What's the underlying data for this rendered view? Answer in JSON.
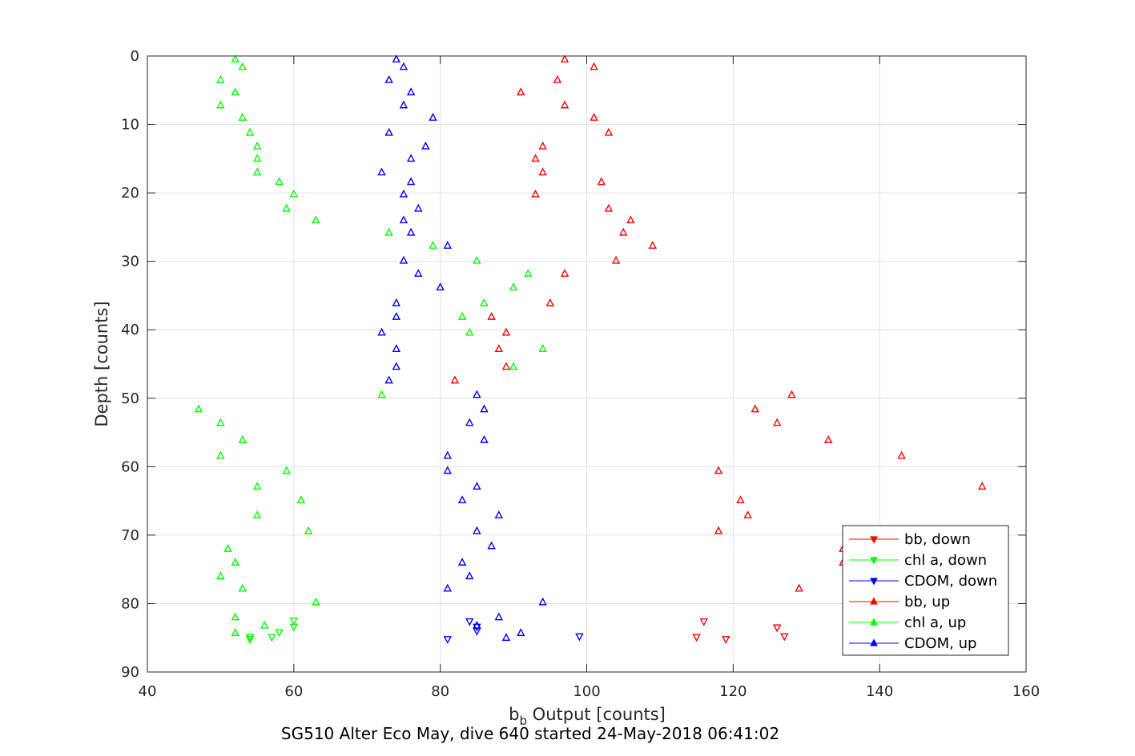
{
  "chart_data": {
    "type": "scatter",
    "title": "SG510 Alter Eco May, dive 640 started 24-May-2018 06:41:02",
    "xlabel": {
      "main": "b",
      "sub": "b",
      "rest": " Output [counts]"
    },
    "ylabel": "Depth [counts]",
    "xlim": [
      40,
      160
    ],
    "ylim": [
      0,
      90
    ],
    "y_reversed": true,
    "xticks": [
      "40",
      "60",
      "80",
      "100",
      "120",
      "140",
      "160"
    ],
    "yticks": [
      "0",
      "10",
      "20",
      "30",
      "40",
      "50",
      "60",
      "70",
      "80",
      "90"
    ],
    "grid": true,
    "legend_position": "bottom-right",
    "series": [
      {
        "name": "bb, down",
        "color": "#ff0000",
        "marker": "triangle-down",
        "points": [
          [
            116,
            82.6
          ],
          [
            126,
            83.5
          ],
          [
            127,
            84.8
          ],
          [
            115,
            84.9
          ],
          [
            119,
            85.2
          ]
        ]
      },
      {
        "name": "chl a, down",
        "color": "#00ff00",
        "marker": "triangle-down",
        "points": [
          [
            60,
            82.5
          ],
          [
            60,
            83.4
          ],
          [
            58,
            84.2
          ],
          [
            57,
            84.9
          ],
          [
            54,
            84.9
          ],
          [
            54,
            85.2
          ]
        ]
      },
      {
        "name": "CDOM, down",
        "color": "#0000ff",
        "marker": "triangle-down",
        "points": [
          [
            84,
            82.6
          ],
          [
            85,
            83.4
          ],
          [
            85,
            84.0
          ],
          [
            99,
            84.8
          ],
          [
            81,
            85.2
          ]
        ]
      },
      {
        "name": "bb, up",
        "color": "#ff0000",
        "marker": "triangle-up",
        "points": [
          [
            97,
            0.5
          ],
          [
            101,
            1.6
          ],
          [
            96,
            3.5
          ],
          [
            91,
            5.3
          ],
          [
            97,
            7.2
          ],
          [
            101,
            9.0
          ],
          [
            103,
            11.2
          ],
          [
            94,
            13.2
          ],
          [
            93,
            15.0
          ],
          [
            94,
            17.0
          ],
          [
            102,
            18.4
          ],
          [
            93,
            20.2
          ],
          [
            103,
            22.3
          ],
          [
            106,
            24.0
          ],
          [
            105,
            25.8
          ],
          [
            109,
            27.7
          ],
          [
            104,
            29.9
          ],
          [
            97,
            31.8
          ],
          [
            95,
            36.1
          ],
          [
            87,
            38.1
          ],
          [
            89,
            40.4
          ],
          [
            88,
            42.8
          ],
          [
            89,
            45.4
          ],
          [
            82,
            47.4
          ],
          [
            128,
            49.5
          ],
          [
            123,
            51.6
          ],
          [
            126,
            53.6
          ],
          [
            133,
            56.1
          ],
          [
            143,
            58.4
          ],
          [
            118,
            60.6
          ],
          [
            154,
            62.9
          ],
          [
            121,
            64.9
          ],
          [
            122,
            67.1
          ],
          [
            118,
            69.4
          ],
          [
            135,
            72.0
          ],
          [
            135,
            74.0
          ],
          [
            129,
            77.8
          ]
        ]
      },
      {
        "name": "chl a, up",
        "color": "#00ff00",
        "marker": "triangle-up",
        "points": [
          [
            52,
            0.5
          ],
          [
            53,
            1.6
          ],
          [
            50,
            3.5
          ],
          [
            52,
            5.3
          ],
          [
            50,
            7.2
          ],
          [
            53,
            9.0
          ],
          [
            54,
            11.2
          ],
          [
            55,
            13.2
          ],
          [
            55,
            15.0
          ],
          [
            55,
            17.0
          ],
          [
            58,
            18.4
          ],
          [
            60,
            20.2
          ],
          [
            59,
            22.3
          ],
          [
            63,
            24.0
          ],
          [
            73,
            25.8
          ],
          [
            79,
            27.7
          ],
          [
            85,
            29.9
          ],
          [
            92,
            31.8
          ],
          [
            90,
            33.8
          ],
          [
            86,
            36.1
          ],
          [
            83,
            38.1
          ],
          [
            84,
            40.4
          ],
          [
            94,
            42.8
          ],
          [
            90,
            45.4
          ],
          [
            72,
            49.5
          ],
          [
            47,
            51.6
          ],
          [
            50,
            53.6
          ],
          [
            53,
            56.1
          ],
          [
            50,
            58.4
          ],
          [
            59,
            60.6
          ],
          [
            55,
            62.9
          ],
          [
            61,
            64.9
          ],
          [
            55,
            67.1
          ],
          [
            62,
            69.4
          ],
          [
            51,
            72.0
          ],
          [
            52,
            74.0
          ],
          [
            50,
            76.0
          ],
          [
            53,
            77.8
          ],
          [
            63,
            79.8
          ],
          [
            52,
            82.0
          ],
          [
            56,
            83.2
          ],
          [
            52,
            84.3
          ]
        ]
      },
      {
        "name": "CDOM, up",
        "color": "#0000ff",
        "marker": "triangle-up",
        "points": [
          [
            74,
            0.5
          ],
          [
            75,
            1.6
          ],
          [
            73,
            3.5
          ],
          [
            76,
            5.3
          ],
          [
            75,
            7.2
          ],
          [
            79,
            9.0
          ],
          [
            73,
            11.2
          ],
          [
            78,
            13.2
          ],
          [
            76,
            15.0
          ],
          [
            72,
            17.0
          ],
          [
            76,
            18.4
          ],
          [
            75,
            20.2
          ],
          [
            77,
            22.3
          ],
          [
            75,
            24.0
          ],
          [
            76,
            25.8
          ],
          [
            81,
            27.7
          ],
          [
            75,
            29.9
          ],
          [
            77,
            31.8
          ],
          [
            80,
            33.8
          ],
          [
            74,
            36.1
          ],
          [
            74,
            38.1
          ],
          [
            72,
            40.4
          ],
          [
            74,
            42.8
          ],
          [
            74,
            45.4
          ],
          [
            73,
            47.4
          ],
          [
            85,
            49.5
          ],
          [
            86,
            51.6
          ],
          [
            84,
            53.6
          ],
          [
            86,
            56.1
          ],
          [
            81,
            58.4
          ],
          [
            81,
            60.6
          ],
          [
            85,
            62.9
          ],
          [
            83,
            64.9
          ],
          [
            88,
            67.1
          ],
          [
            85,
            69.4
          ],
          [
            87,
            71.6
          ],
          [
            83,
            74.0
          ],
          [
            84,
            76.0
          ],
          [
            81,
            77.8
          ],
          [
            94,
            79.8
          ],
          [
            88,
            82.0
          ],
          [
            85,
            83.2
          ],
          [
            91,
            84.3
          ],
          [
            89,
            85.0
          ]
        ]
      }
    ]
  }
}
